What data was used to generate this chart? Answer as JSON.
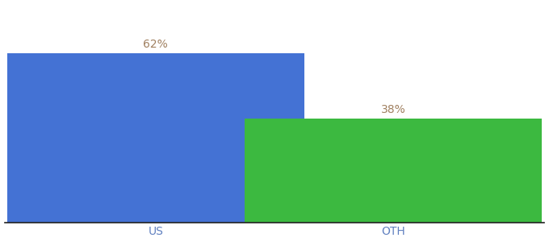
{
  "categories": [
    "US",
    "OTH"
  ],
  "values": [
    62,
    38
  ],
  "bar_colors": [
    "#4472D4",
    "#3CB940"
  ],
  "labels": [
    "62%",
    "38%"
  ],
  "ylim": [
    0,
    80
  ],
  "background_color": "#ffffff",
  "label_color": "#a08060",
  "tick_label_color": "#6080c0",
  "bar_width": 0.55,
  "label_fontsize": 10,
  "tick_fontsize": 10,
  "x_positions": [
    0.28,
    0.72
  ]
}
